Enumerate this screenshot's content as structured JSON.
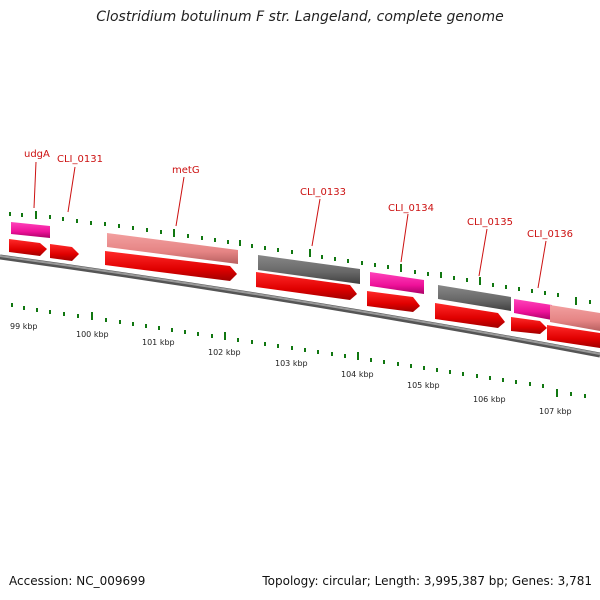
{
  "header": {
    "title": "Clostridium botulinum F str. Langeland, complete genome"
  },
  "footer": {
    "accession": "Accession: NC_009699",
    "summary": "Topology: circular; Length: 3,995,387 bp; Genes: 3,781"
  },
  "colors": {
    "cds_red": "#ee0000",
    "rna_magenta": "#ee2299",
    "salmon": "#e88888",
    "gray_gene": "#666666",
    "tick_green": "#117711",
    "label_red": "#cc1111",
    "backbone": "#777777"
  },
  "genes": [
    {
      "name": "udgA",
      "color": "rna_magenta"
    },
    {
      "name": "CLI_0131",
      "color": "cds_red"
    },
    {
      "name": "metG",
      "color": "salmon"
    },
    {
      "name": "CLI_0133",
      "color": "gray_gene"
    },
    {
      "name": "CLI_0134",
      "color": "rna_magenta"
    },
    {
      "name": "CLI_0135",
      "color": "gray_gene"
    },
    {
      "name": "CLI_0136",
      "color": "rna_magenta"
    }
  ],
  "kbp_labels": [
    "99 kbp",
    "100 kbp",
    "101 kbp",
    "102 kbp",
    "103 kbp",
    "104 kbp",
    "105 kbp",
    "106 kbp",
    "107 kbp"
  ]
}
